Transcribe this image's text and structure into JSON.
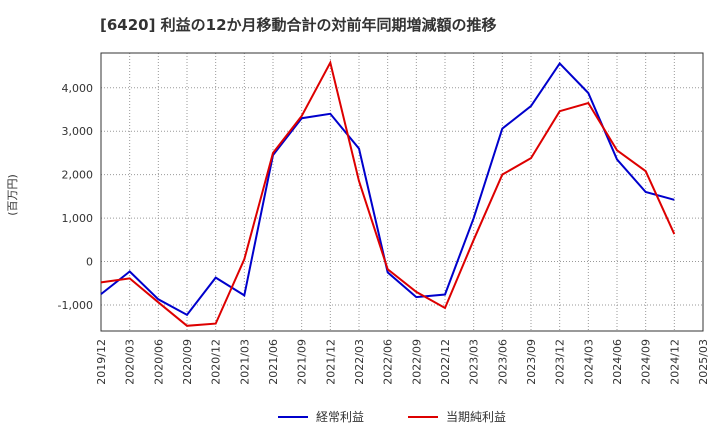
{
  "chart_data": {
    "type": "line",
    "title": "[6420]  利益の12か月移動合計の対前年同期増減額の推移",
    "ylabel": "(百万円)",
    "xlabel": "",
    "ylim": [
      -1600,
      4800
    ],
    "yticks": [
      -1000,
      0,
      1000,
      2000,
      3000,
      4000
    ],
    "ytick_labels": [
      "-1,000",
      "0",
      "1,000",
      "2,000",
      "3,000",
      "4,000"
    ],
    "categories": [
      "2019/12",
      "2020/03",
      "2020/06",
      "2020/09",
      "2020/12",
      "2021/03",
      "2021/06",
      "2021/09",
      "2021/12",
      "2022/03",
      "2022/06",
      "2022/09",
      "2022/12",
      "2023/03",
      "2023/06",
      "2023/09",
      "2023/12",
      "2024/03",
      "2024/06",
      "2024/09",
      "2024/12",
      "2025/03"
    ],
    "series": [
      {
        "name": "経常利益",
        "color": "#0000cc",
        "values": [
          -750,
          -230,
          -870,
          -1230,
          -370,
          -780,
          2450,
          3300,
          3400,
          2600,
          -250,
          -820,
          -760,
          1000,
          3060,
          3580,
          4560,
          3880,
          2350,
          1600,
          1420,
          null
        ]
      },
      {
        "name": "当期純利益",
        "color": "#dd0000",
        "values": [
          -480,
          -390,
          -940,
          -1480,
          -1430,
          50,
          2500,
          3350,
          4580,
          1850,
          -180,
          -700,
          -1070,
          500,
          2000,
          2380,
          3460,
          3650,
          2560,
          2080,
          630,
          null
        ]
      }
    ],
    "legend_position": "bottom-center",
    "grid": true
  }
}
